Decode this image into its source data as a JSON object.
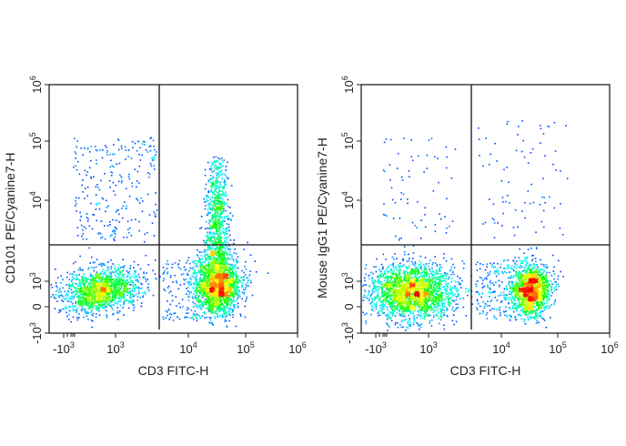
{
  "chart_data": [
    {
      "type": "scatter",
      "subtype": "flow-cytometry density dot plot",
      "xlabel": "CD3 FITC-H",
      "ylabel": "CD101 PE/Cyanine7-H",
      "x_scale": "biexponential",
      "y_scale": "biexponential",
      "x_ticks": [
        {
          "base": "-10",
          "exp": "3"
        },
        {
          "base": "10",
          "exp": "3"
        },
        {
          "base": "10",
          "exp": "4"
        },
        {
          "base": "10",
          "exp": "5"
        },
        {
          "base": "10",
          "exp": "6"
        }
      ],
      "y_ticks": [
        {
          "base": "-10",
          "exp": "3"
        },
        {
          "base": "0",
          "exp": ""
        },
        {
          "base": "10",
          "exp": "3"
        },
        {
          "base": "10",
          "exp": "4"
        },
        {
          "base": "10",
          "exp": "5"
        },
        {
          "base": "10",
          "exp": "6"
        }
      ],
      "quadrant_gate": {
        "x": 4000,
        "y": 2800
      },
      "colormap": [
        "#0000ff",
        "#00ffff",
        "#00ff00",
        "#ffff00",
        "#ff0000"
      ]
    },
    {
      "type": "scatter",
      "subtype": "flow-cytometry density dot plot",
      "xlabel": "CD3 FITC-H",
      "ylabel": "Mouse IgG1 PE/Cyanine7-H",
      "x_scale": "biexponential",
      "y_scale": "biexponential",
      "x_ticks": [
        {
          "base": "-10",
          "exp": "3"
        },
        {
          "base": "10",
          "exp": "3"
        },
        {
          "base": "10",
          "exp": "4"
        },
        {
          "base": "10",
          "exp": "5"
        },
        {
          "base": "10",
          "exp": "6"
        }
      ],
      "y_ticks": [
        {
          "base": "-10",
          "exp": "3"
        },
        {
          "base": "0",
          "exp": ""
        },
        {
          "base": "10",
          "exp": "3"
        },
        {
          "base": "10",
          "exp": "4"
        },
        {
          "base": "10",
          "exp": "5"
        },
        {
          "base": "10",
          "exp": "6"
        }
      ],
      "quadrant_gate": {
        "x": 4000,
        "y": 2800
      },
      "colormap": [
        "#0000ff",
        "#00ffff",
        "#00ff00",
        "#ffff00",
        "#ff0000"
      ]
    }
  ]
}
